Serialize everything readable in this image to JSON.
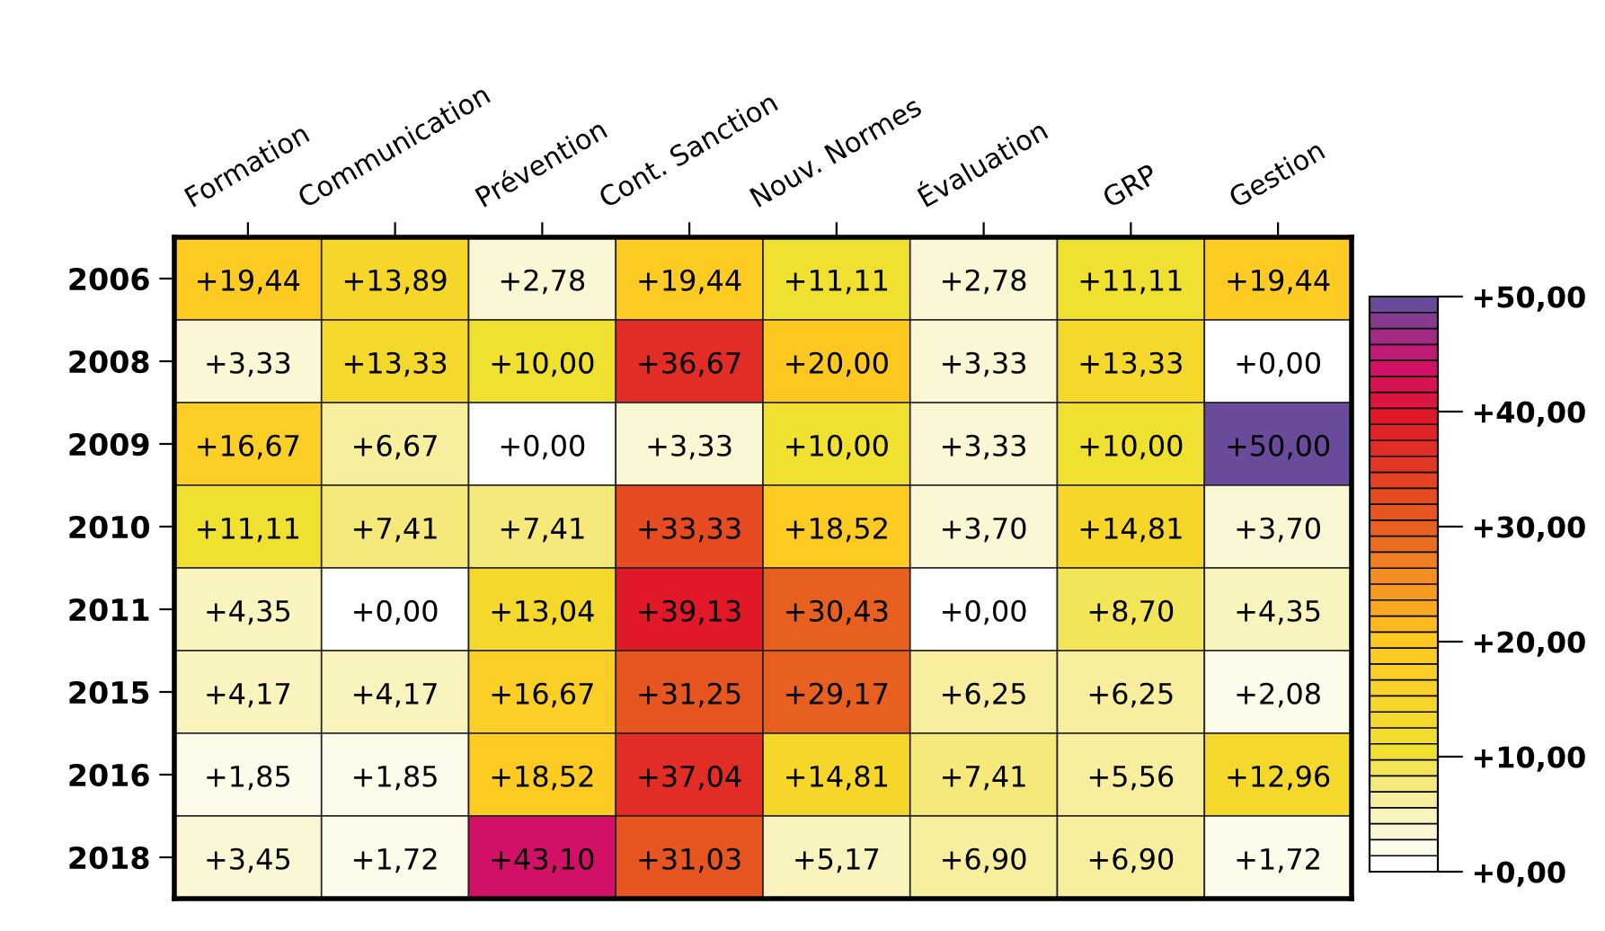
{
  "chart_data": {
    "type": "heatmap",
    "categories": [
      "Formation",
      "Communication",
      "Prévention",
      "Cont. Sanction",
      "Nouv. Normes",
      "Évaluation",
      "GRP",
      "Gestion"
    ],
    "y_categories": [
      "2006",
      "2008",
      "2009",
      "2010",
      "2011",
      "2015",
      "2016",
      "2018"
    ],
    "cells": [
      [
        19.44,
        13.89,
        2.78,
        19.44,
        11.11,
        2.78,
        11.11,
        19.44
      ],
      [
        3.33,
        13.33,
        10.0,
        36.67,
        20.0,
        3.33,
        13.33,
        0.0
      ],
      [
        16.67,
        6.67,
        0.0,
        3.33,
        10.0,
        3.33,
        10.0,
        50.0
      ],
      [
        11.11,
        7.41,
        7.41,
        33.33,
        18.52,
        3.7,
        14.81,
        3.7
      ],
      [
        4.35,
        0.0,
        13.04,
        39.13,
        30.43,
        0.0,
        8.7,
        4.35
      ],
      [
        4.17,
        4.17,
        16.67,
        31.25,
        29.17,
        6.25,
        6.25,
        2.08
      ],
      [
        1.85,
        1.85,
        18.52,
        37.04,
        14.81,
        7.41,
        5.56,
        12.96
      ],
      [
        3.45,
        1.72,
        43.1,
        31.03,
        5.17,
        6.9,
        6.9,
        1.72
      ]
    ],
    "cell_labels": [
      [
        "+19,44",
        "+13,89",
        "+2,78",
        "+19,44",
        "+11,11",
        "+2,78",
        "+11,11",
        "+19,44"
      ],
      [
        "+3,33",
        "+13,33",
        "+10,00",
        "+36,67",
        "+20,00",
        "+3,33",
        "+13,33",
        "+0,00"
      ],
      [
        "+16,67",
        "+6,67",
        "+0,00",
        "+3,33",
        "+10,00",
        "+3,33",
        "+10,00",
        "+50,00"
      ],
      [
        "+11,11",
        "+7,41",
        "+7,41",
        "+33,33",
        "+18,52",
        "+3,70",
        "+14,81",
        "+3,70"
      ],
      [
        "+4,35",
        "+0,00",
        "+13,04",
        "+39,13",
        "+30,43",
        "+0,00",
        "+8,70",
        "+4,35"
      ],
      [
        "+4,17",
        "+4,17",
        "+16,67",
        "+31,25",
        "+29,17",
        "+6,25",
        "+6,25",
        "+2,08"
      ],
      [
        "+1,85",
        "+1,85",
        "+18,52",
        "+37,04",
        "+14,81",
        "+7,41",
        "+5,56",
        "+12,96"
      ],
      [
        "+3,45",
        "+1,72",
        "+43,10",
        "+31,03",
        "+5,17",
        "+6,90",
        "+6,90",
        "+1,72"
      ]
    ],
    "clim": [
      0,
      50
    ],
    "cticks": [
      {
        "value": 0,
        "label": "+0,00"
      },
      {
        "value": 10,
        "label": "+10,00"
      },
      {
        "value": 20,
        "label": "+20,00"
      },
      {
        "value": 30,
        "label": "+30,00"
      },
      {
        "value": 40,
        "label": "+40,00"
      },
      {
        "value": 50,
        "label": "+50,00"
      }
    ]
  }
}
